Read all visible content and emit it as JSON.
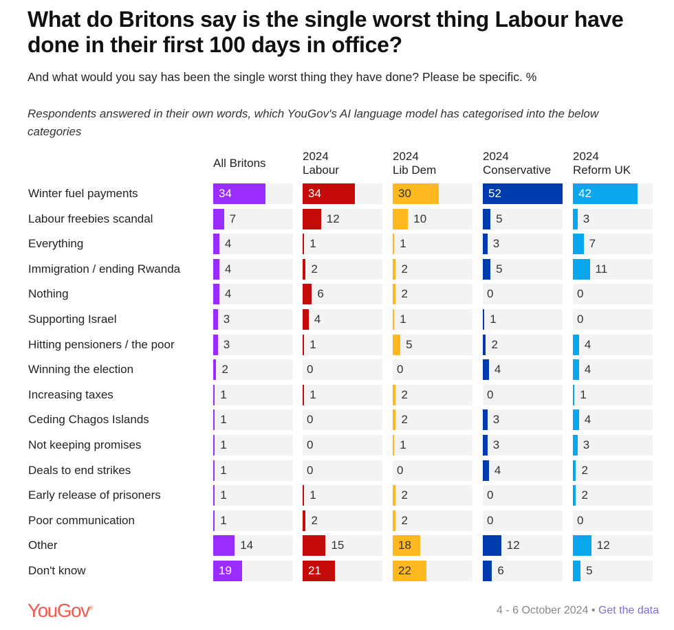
{
  "title": "What do Britons say is the single worst thing Labour have done in their first 100 days in office?",
  "subtitle": "And what would you say has been the single worst thing they have done? Please be specific. %",
  "note": "Respondents answered in their own words, which YouGov's AI language model has categorised into the below categories",
  "footer": {
    "logo": "YouGov",
    "date": "4 - 6 October 2024",
    "separator": "•",
    "link": "Get the data"
  },
  "chart_data": {
    "type": "bar",
    "orientation": "horizontal",
    "xlim": [
      0,
      52
    ],
    "categories": [
      "Winter fuel payments",
      "Labour freebies scandal",
      "Everything",
      "Immigration / ending Rwanda",
      "Nothing",
      "Supporting Israel",
      "Hitting pensioners / the poor",
      "Winning the election",
      "Increasing taxes",
      "Ceding Chagos Islands",
      "Not keeping promises",
      "Deals to end strikes",
      "Early release of prisoners",
      "Poor communication",
      "Other",
      "Don't know"
    ],
    "series": [
      {
        "name": "All Britons",
        "color": "#9b2cff",
        "text_color": "#ffffff",
        "values": [
          34,
          7,
          4,
          4,
          4,
          3,
          3,
          2,
          1,
          1,
          1,
          1,
          1,
          1,
          14,
          19
        ]
      },
      {
        "name": "2024 Labour",
        "color": "#c50a0a",
        "text_color": "#ffffff",
        "values": [
          34,
          12,
          1,
          2,
          6,
          4,
          1,
          0,
          1,
          0,
          0,
          0,
          1,
          2,
          15,
          21
        ]
      },
      {
        "name": "2024 Lib Dem",
        "color": "#ffb820",
        "text_color": "#333333",
        "values": [
          30,
          10,
          1,
          2,
          2,
          1,
          5,
          0,
          2,
          2,
          1,
          0,
          2,
          2,
          18,
          22
        ]
      },
      {
        "name": "2024 Conservative",
        "color": "#003bad",
        "text_color": "#ffffff",
        "values": [
          52,
          5,
          3,
          5,
          0,
          1,
          2,
          4,
          0,
          3,
          3,
          4,
          0,
          0,
          12,
          6
        ]
      },
      {
        "name": "2024 Reform UK",
        "color": "#0aa6ee",
        "text_color": "#ffffff",
        "values": [
          42,
          3,
          7,
          11,
          0,
          0,
          4,
          4,
          1,
          4,
          3,
          2,
          2,
          0,
          12,
          5
        ]
      }
    ]
  }
}
